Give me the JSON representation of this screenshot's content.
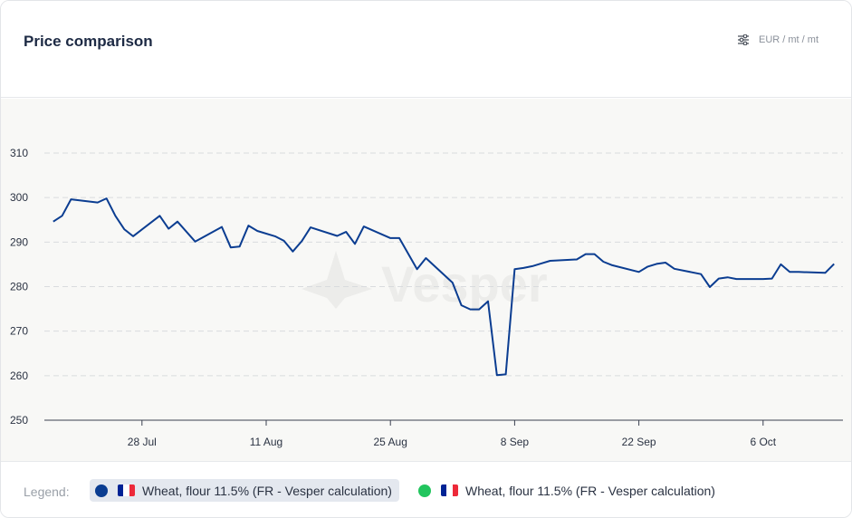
{
  "header": {
    "title": "Price comparison",
    "unit_label": "EUR / mt / mt",
    "unit_icon": "sliders-icon"
  },
  "legend": {
    "label": "Legend:",
    "items": [
      {
        "name": "Wheat, flour 11.5% (FR - Vesper calculation)",
        "color": "#0b3d91",
        "flag": "france-flag-icon",
        "active": true
      },
      {
        "name": "Wheat, flour 11.5% (FR - Vesper calculation)",
        "color": "#22c55e",
        "flag": "france-flag-icon",
        "active": false
      }
    ]
  },
  "watermark": "Vesper",
  "colors": {
    "line": "#0b3d91",
    "grid": "#d9dbde",
    "plot_bg": "#f8f8f6",
    "flag_blue": "#002395",
    "flag_white": "#ffffff",
    "flag_red": "#ed2939"
  },
  "chart_data": {
    "type": "line",
    "x_tick_labels": [
      "28 Jul",
      "11 Aug",
      "25 Aug",
      "8 Sep",
      "22 Sep",
      "6 Oct"
    ],
    "x_tick_dates": [
      "2024-07-28",
      "2024-08-11",
      "2024-08-25",
      "2024-09-08",
      "2024-09-22",
      "2024-10-06"
    ],
    "y_ticks": [
      250,
      260,
      270,
      280,
      290,
      300,
      310
    ],
    "ylim": [
      250,
      310
    ],
    "xlim": [
      "2024-07-17",
      "2024-10-15"
    ],
    "grid": true,
    "legend_position": "bottom",
    "series": [
      {
        "color": "#0b3d91",
        "x": [
          "2024-07-18",
          "2024-07-19",
          "2024-07-20",
          "2024-07-23",
          "2024-07-24",
          "2024-07-25",
          "2024-07-26",
          "2024-07-27",
          "2024-07-30",
          "2024-07-31",
          "2024-08-01",
          "2024-08-03",
          "2024-08-06",
          "2024-08-07",
          "2024-08-08",
          "2024-08-09",
          "2024-08-10",
          "2024-08-12",
          "2024-08-13",
          "2024-08-14",
          "2024-08-15",
          "2024-08-16",
          "2024-08-19",
          "2024-08-20",
          "2024-08-21",
          "2024-08-22",
          "2024-08-25",
          "2024-08-26",
          "2024-08-28",
          "2024-08-29",
          "2024-09-01",
          "2024-09-02",
          "2024-09-03",
          "2024-09-04",
          "2024-09-05",
          "2024-09-06",
          "2024-09-07",
          "2024-09-08",
          "2024-09-09",
          "2024-09-10",
          "2024-09-11",
          "2024-09-12",
          "2024-09-15",
          "2024-09-16",
          "2024-09-17",
          "2024-09-18",
          "2024-09-19",
          "2024-09-22",
          "2024-09-23",
          "2024-09-24",
          "2024-09-25",
          "2024-09-26",
          "2024-09-29",
          "2024-09-30",
          "2024-10-01",
          "2024-10-02",
          "2024-10-03",
          "2024-10-06",
          "2024-10-07",
          "2024-10-08",
          "2024-10-09",
          "2024-10-10",
          "2024-10-13",
          "2024-10-14"
        ],
        "y": [
          294.6,
          295.9,
          299.6,
          298.9,
          299.8,
          295.9,
          292.9,
          291.3,
          295.9,
          293.0,
          294.6,
          290.1,
          293.4,
          288.8,
          289.0,
          293.7,
          292.5,
          291.3,
          290.3,
          287.9,
          290.2,
          293.3,
          291.4,
          292.3,
          289.6,
          293.5,
          290.9,
          290.9,
          283.9,
          286.4,
          280.9,
          275.8,
          274.9,
          274.9,
          276.7,
          260.1,
          260.3,
          283.9,
          284.2,
          284.6,
          285.2,
          285.8,
          286.1,
          287.3,
          287.3,
          285.6,
          284.8,
          283.3,
          284.5,
          285.1,
          285.4,
          284.0,
          282.8,
          279.9,
          281.8,
          282.1,
          281.7,
          281.7,
          281.8,
          285.0,
          283.3,
          283.3,
          283.1,
          285.1
        ]
      }
    ]
  }
}
